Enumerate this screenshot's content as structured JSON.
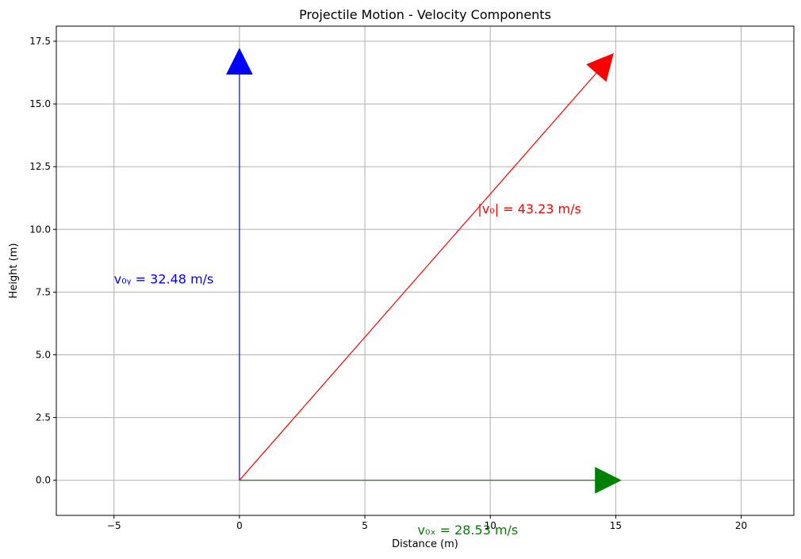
{
  "chart_data": {
    "type": "line",
    "title": "Projectile Motion - Velocity Components",
    "xlabel": "Distance (m)",
    "ylabel": "Height (m)",
    "xlim": [
      -7.3,
      22.1
    ],
    "ylim": [
      -1.4,
      18.1
    ],
    "x_ticks": [
      {
        "value": -5,
        "label": "−5"
      },
      {
        "value": 0,
        "label": "0"
      },
      {
        "value": 5,
        "label": "5"
      },
      {
        "value": 10,
        "label": "10"
      },
      {
        "value": 15,
        "label": "15"
      },
      {
        "value": 20,
        "label": "20"
      }
    ],
    "y_ticks": [
      {
        "value": 0,
        "label": "0.0"
      },
      {
        "value": 2.5,
        "label": "2.5"
      },
      {
        "value": 5,
        "label": "5.0"
      },
      {
        "value": 7.5,
        "label": "7.5"
      },
      {
        "value": 10,
        "label": "10.0"
      },
      {
        "value": 12.5,
        "label": "12.5"
      },
      {
        "value": 15,
        "label": "15.0"
      },
      {
        "value": 17.5,
        "label": "17.5"
      }
    ],
    "grid": true,
    "vectors": [
      {
        "id": "vertical",
        "start": [
          0,
          0
        ],
        "end": [
          0,
          17.2
        ],
        "color": "#0000ff",
        "label": "v₀ᵧ = 32.48 m/s",
        "label_at": [
          -5,
          8.0
        ],
        "label_anchor": "start"
      },
      {
        "id": "horizontal",
        "start": [
          0,
          0
        ],
        "end": [
          15.2,
          0
        ],
        "color": "#008000",
        "label": "v₀ₓ = 28.53 m/s",
        "label_at": [
          7.1,
          -2.0
        ],
        "label_anchor": "start"
      },
      {
        "id": "resultant",
        "start": [
          0,
          0
        ],
        "end": [
          14.9,
          17.0
        ],
        "color": "#ff0000",
        "label": "|v₀| = 43.23 m/s",
        "label_at": [
          9.5,
          10.8
        ],
        "label_anchor": "start"
      }
    ]
  }
}
